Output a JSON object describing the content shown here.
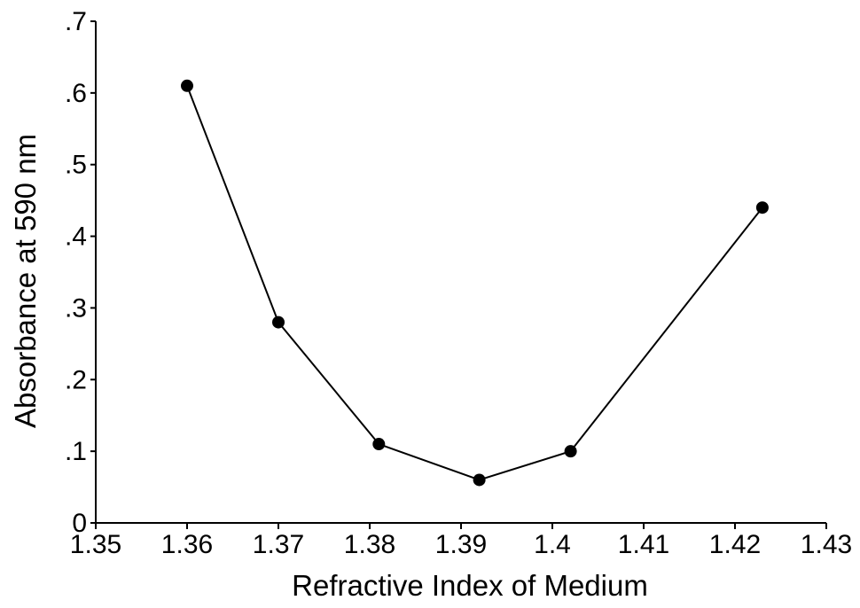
{
  "chart_data": {
    "type": "line",
    "title": "",
    "xlabel": "Refractive Index of Medium",
    "ylabel": "Absorbance at 590 nm",
    "xlim": [
      1.35,
      1.43
    ],
    "ylim": [
      0,
      0.7
    ],
    "x_ticks": [
      1.35,
      1.36,
      1.37,
      1.38,
      1.39,
      1.4,
      1.41,
      1.42,
      1.43
    ],
    "x_tick_labels": [
      "1.35",
      "1.36",
      "1.37",
      "1.38",
      "1.39",
      "1.4",
      "1.41",
      "1.42",
      "1.43"
    ],
    "y_ticks": [
      0,
      0.1,
      0.2,
      0.3,
      0.4,
      0.5,
      0.6,
      0.7
    ],
    "y_tick_labels": [
      "0",
      ".1",
      ".2",
      ".3",
      ".4",
      ".5",
      ".6",
      ".7"
    ],
    "grid": false,
    "legend": "none",
    "series": [
      {
        "x": [
          1.36,
          1.37,
          1.381,
          1.392,
          1.402,
          1.423
        ],
        "y": [
          0.61,
          0.28,
          0.11,
          0.06,
          0.1,
          0.44
        ],
        "marker": "filled-circle",
        "color": "#000000"
      }
    ]
  }
}
